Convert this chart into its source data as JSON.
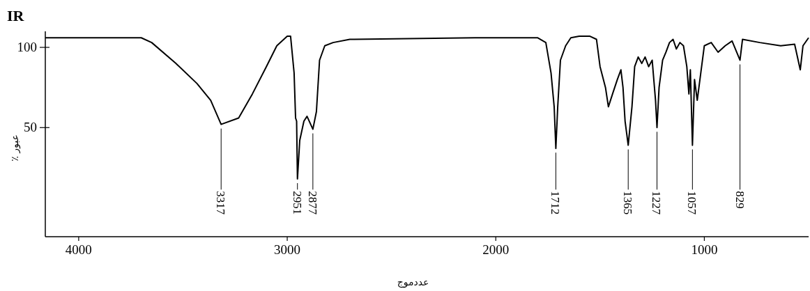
{
  "chart_data": {
    "type": "line",
    "title": "IR",
    "xlabel": "عددموج",
    "ylabel": "عبور ٪",
    "color": "#000000",
    "line_style": "solid",
    "xlim": [
      4160,
      500
    ],
    "ylim": [
      -18,
      110
    ],
    "xticks": [
      4000,
      3000,
      2000,
      1000
    ],
    "yticks": [
      50,
      100
    ],
    "x": [
      4160,
      3700,
      3650,
      3534,
      3433,
      3367,
      3317,
      3233,
      3167,
      3100,
      3050,
      3000,
      2984,
      2967,
      2960,
      2955,
      2951,
      2940,
      2920,
      2905,
      2877,
      2860,
      2845,
      2820,
      2780,
      2700,
      2100,
      1800,
      1760,
      1735,
      1720,
      1712,
      1703,
      1690,
      1665,
      1640,
      1600,
      1570,
      1550,
      1517,
      1500,
      1474,
      1460,
      1440,
      1417,
      1400,
      1390,
      1380,
      1365,
      1347,
      1334,
      1317,
      1300,
      1284,
      1267,
      1250,
      1234,
      1227,
      1217,
      1200,
      1184,
      1167,
      1150,
      1134,
      1117,
      1100,
      1084,
      1074,
      1067,
      1057,
      1047,
      1034,
      1017,
      1000,
      967,
      934,
      900,
      867,
      829,
      817,
      734,
      634,
      567,
      540,
      527,
      500
    ],
    "values": [
      106,
      106,
      103,
      90,
      77.5,
      67,
      52,
      56,
      71,
      88,
      101,
      107,
      107,
      84,
      56,
      54,
      18,
      42,
      54,
      57,
      49,
      60,
      92,
      101,
      103,
      105,
      106,
      106,
      103,
      84,
      63,
      37,
      63,
      92,
      101,
      106,
      107,
      107,
      107,
      105,
      88,
      75,
      63,
      71,
      80,
      86,
      75,
      54,
      39,
      63,
      88,
      94,
      90,
      94,
      88,
      92,
      67,
      50,
      75,
      92,
      97,
      103,
      105,
      99,
      103,
      101,
      88,
      71,
      86,
      39,
      80,
      67,
      84,
      101,
      103,
      97,
      101,
      104,
      92,
      105,
      103,
      101,
      102,
      86,
      101,
      106
    ],
    "annotations": [
      {
        "text": "3317",
        "x": 3317,
        "y": 52
      },
      {
        "text": "2951",
        "x": 2951,
        "y": 18
      },
      {
        "text": "2877",
        "x": 2877,
        "y": 49
      },
      {
        "text": "1712",
        "x": 1712,
        "y": 37
      },
      {
        "text": "1365",
        "x": 1365,
        "y": 39
      },
      {
        "text": "1227",
        "x": 1227,
        "y": 50
      },
      {
        "text": "1057",
        "x": 1057,
        "y": 39
      },
      {
        "text": "829",
        "x": 829,
        "y": 92
      }
    ]
  }
}
